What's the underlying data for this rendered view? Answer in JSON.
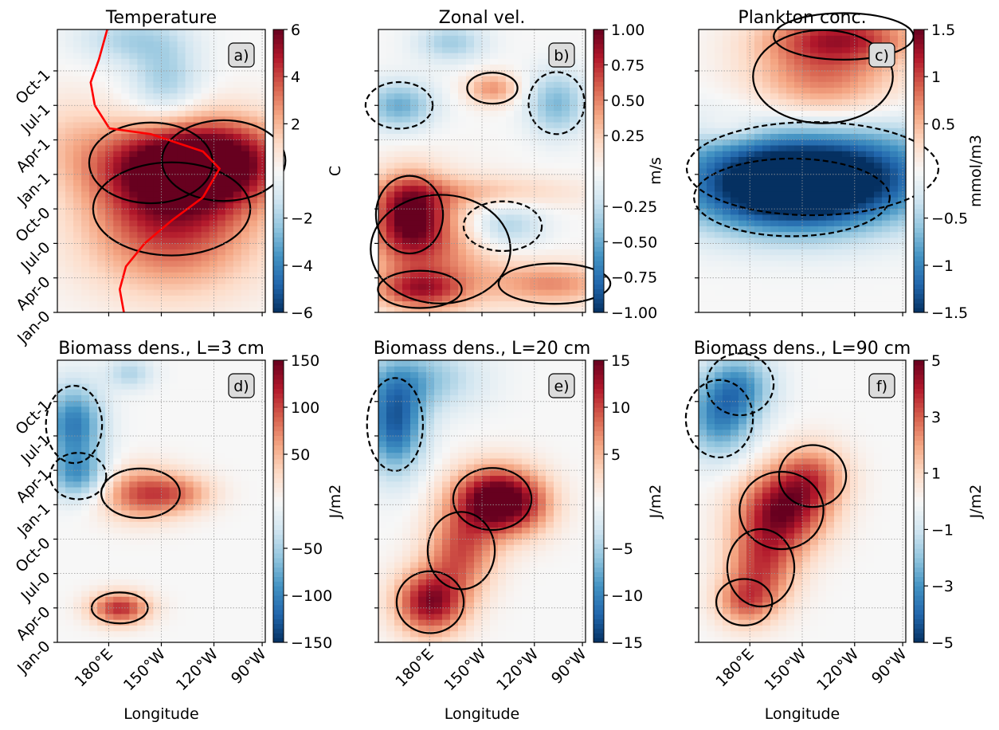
{
  "figure": {
    "y_tick_labels": [
      "Jan-0",
      "Apr-0",
      "Jul-0",
      "Oct-0",
      "Jan-1",
      "Apr-1",
      "Jul-1",
      "Oct-1"
    ],
    "x_tick_labels": [
      "180°E",
      "150°W",
      "120°W",
      "90°W"
    ],
    "xlabel": "Longitude"
  },
  "chart_data": [
    {
      "type": "heatmap",
      "panel": "a)",
      "title": "Temperature",
      "colorbar": {
        "label": "C",
        "ticks": [
          -6,
          -4,
          -2,
          2,
          4,
          6
        ],
        "range": [
          -6,
          6
        ]
      },
      "contours": "solid black = positive anomalies, dashed black = negative anomalies",
      "overlay_line": {
        "color": "#ff0000",
        "description": "red line, meridional profile in left portion of panel"
      },
      "field_summary": "strong positive anomaly (up to ~6 C) spanning roughly Oct-0 to Mar-1 from 180E to the eastern edge; weak negative anomalies near Jul-1 to Oct-1"
    },
    {
      "type": "heatmap",
      "panel": "b)",
      "title": "Zonal vel.",
      "colorbar": {
        "label": "m/s",
        "ticks": [
          -1.0,
          -0.75,
          -0.5,
          -0.25,
          0.25,
          0.5,
          0.75,
          1.0
        ],
        "tick_labels": [
          "−1.00",
          "−0.75",
          "−0.50",
          "−0.25",
          "0.25",
          "0.50",
          "0.75",
          "1.00"
        ],
        "range": [
          -1,
          1
        ]
      },
      "field_summary": "eastward anomalies Apr-0 to Dec-0 in the west; westward anomalies after Jan-1"
    },
    {
      "type": "heatmap",
      "panel": "c)",
      "title": "Plankton conc.",
      "colorbar": {
        "label": "mmol/m3",
        "ticks": [
          -1.5,
          -1.0,
          -0.5,
          0.5,
          1.0,
          1.5
        ],
        "range": [
          -1.5,
          1.5
        ]
      },
      "field_summary": "strong negative anomaly from Sep-0 to Mar-1 across basin; positive anomaly after Jul-1"
    },
    {
      "type": "heatmap",
      "panel": "d)",
      "title": "Biomass dens., L=3 cm",
      "colorbar": {
        "label": "J/m2",
        "ticks": [
          -150,
          -100,
          -50,
          50,
          100,
          150
        ],
        "range": [
          -150,
          150
        ]
      },
      "field_summary": "positive anomalies Apr-0 and Nov-0 to Jan-1; negative anomalies Jan-1 to Aug-1 in the west"
    },
    {
      "type": "heatmap",
      "panel": "e)",
      "title": "Biomass dens., L=20 cm",
      "colorbar": {
        "label": "J/m2",
        "ticks": [
          -15,
          -10,
          -5,
          5,
          10,
          15
        ],
        "range": [
          -15,
          15
        ]
      },
      "field_summary": "positive diagonal band from Apr-0 near 180E to Jan-1 near 130W; negative anomalies in the west after Jan-1"
    },
    {
      "type": "heatmap",
      "panel": "f)",
      "title": "Biomass dens., L=90 cm",
      "colorbar": {
        "label": "J/m2",
        "ticks": [
          -5,
          -3,
          -1,
          1,
          3,
          5
        ],
        "range": [
          -5,
          5
        ]
      },
      "field_summary": "positive diagonal band from May-0 to Apr-1 between 180E and 120W; negative anomalies in the west after Jan-1"
    }
  ]
}
